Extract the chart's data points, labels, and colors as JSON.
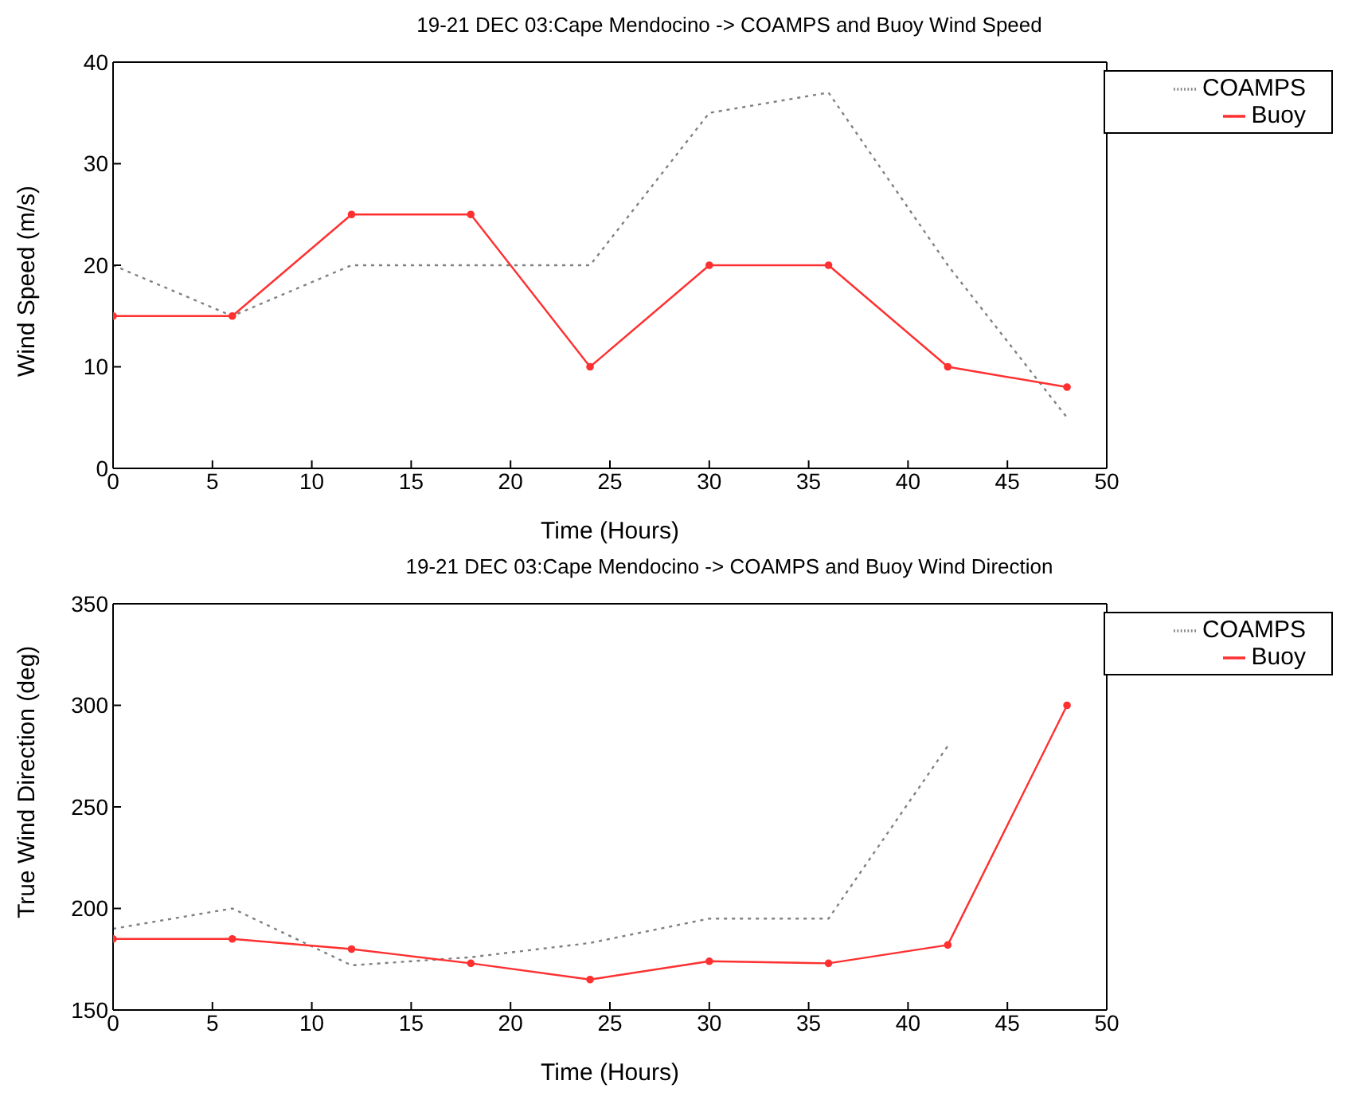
{
  "chart_data": [
    {
      "type": "line",
      "title": "19-21 DEC 03:Cape Mendocino -> COAMPS and Buoy Wind Speed",
      "xlabel": "Time (Hours)",
      "ylabel": "Wind Speed (m/s)",
      "x": [
        0,
        6,
        12,
        18,
        24,
        30,
        36,
        42,
        48
      ],
      "series": [
        {
          "name": "COAMPS",
          "color": "#808080",
          "line_style": "dotted",
          "marker": "none",
          "values": [
            20,
            15,
            20,
            20,
            20,
            35,
            37,
            20,
            5
          ]
        },
        {
          "name": "Buoy",
          "color": "#ff3030",
          "line_style": "solid",
          "marker": "circle",
          "values": [
            15,
            15,
            25,
            25,
            10,
            20,
            20,
            10,
            8
          ]
        }
      ],
      "xlim": [
        0,
        50
      ],
      "xticks": [
        0,
        5,
        10,
        15,
        20,
        25,
        30,
        35,
        40,
        45,
        50
      ],
      "ylim": [
        0,
        40
      ],
      "yticks": [
        0,
        10,
        20,
        30,
        40
      ],
      "legend": "top right"
    },
    {
      "type": "line",
      "title": "19-21 DEC 03:Cape Mendocino -> COAMPS and Buoy Wind Direction",
      "xlabel": "Time (Hours)",
      "ylabel": "True Wind Direction (deg)",
      "x": [
        0,
        6,
        12,
        18,
        24,
        30,
        36,
        42,
        48
      ],
      "series": [
        {
          "name": "COAMPS",
          "color": "#808080",
          "line_style": "dotted",
          "marker": "none",
          "values": [
            190,
            200,
            172,
            176,
            183,
            195,
            195,
            280,
            null
          ]
        },
        {
          "name": "Buoy",
          "color": "#ff3030",
          "line_style": "solid",
          "marker": "circle",
          "values": [
            185,
            185,
            180,
            173,
            165,
            174,
            173,
            182,
            300
          ]
        }
      ],
      "xlim": [
        0,
        50
      ],
      "xticks": [
        0,
        5,
        10,
        15,
        20,
        25,
        30,
        35,
        40,
        45,
        50
      ],
      "ylim": [
        150,
        350
      ],
      "yticks": [
        150,
        200,
        250,
        300,
        350
      ],
      "legend": "top right"
    }
  ]
}
